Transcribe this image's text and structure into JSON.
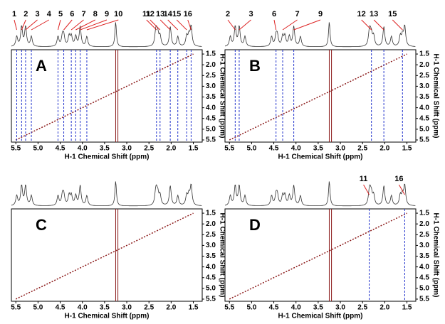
{
  "chart_data": [
    {
      "type": "nmr2d",
      "panel": "A",
      "xlabel": "H-1 Chemical Shift (ppm)",
      "ylabel": "H-1 Chemical Shift (ppm)",
      "xlim": [
        5.6,
        1.3
      ],
      "ylim": [
        1.3,
        5.6
      ],
      "xticks": [
        5.5,
        {
          "value": 5,
          "label": "5.0"
        },
        4.5,
        {
          "value": 4,
          "label": "4.0"
        },
        3.5,
        {
          "value": 3,
          "label": "3.0"
        },
        2.5,
        {
          "value": 2,
          "label": "2.0"
        },
        1.5
      ],
      "yticks": [
        1.5,
        {
          "value": 2,
          "label": "2.0"
        },
        2.5,
        {
          "value": 3,
          "label": "3.0"
        },
        3.5,
        {
          "value": 4,
          "label": "4.0"
        },
        4.5,
        {
          "value": 5,
          "label": "5.0"
        },
        5.5
      ],
      "annotations": [
        {
          "text": "1",
          "x": 5.48
        },
        {
          "text": "2",
          "x": 5.37
        },
        {
          "text": "3",
          "x": 5.28
        },
        {
          "text": "4",
          "x": 5.15
        },
        {
          "text": "5",
          "x": 4.55
        },
        {
          "text": "6",
          "x": 4.42
        },
        {
          "text": "7",
          "x": 4.25
        },
        {
          "text": "8",
          "x": 4.15
        },
        {
          "text": "9",
          "x": 4.05
        },
        {
          "text": "10",
          "x": 3.9
        },
        {
          "text": "11",
          "x": 2.33
        },
        {
          "text": "12",
          "x": 2.25
        },
        {
          "text": "13",
          "x": 2.02
        },
        {
          "text": "14",
          "x": 1.85
        },
        {
          "text": "15",
          "x": 1.65
        },
        {
          "text": "16",
          "x": 1.55
        }
      ]
    },
    {
      "type": "nmr2d",
      "panel": "B",
      "xlabel": "H-1 Chemical Shift (ppm)",
      "ylabel": "H-1 Chemical Shift (ppm)",
      "xlim": [
        5.6,
        1.3
      ],
      "ylim": [
        1.3,
        5.6
      ],
      "xticks": [
        5.5,
        {
          "value": 5,
          "label": "5.0"
        },
        4.5,
        {
          "value": 4,
          "label": "4.0"
        },
        3.5,
        {
          "value": 3,
          "label": "3.0"
        },
        2.5,
        {
          "value": 2,
          "label": "2.0"
        },
        1.5
      ],
      "yticks": [
        1.5,
        {
          "value": 2,
          "label": "2.0"
        },
        2.5,
        {
          "value": 3,
          "label": "3.0"
        },
        3.5,
        {
          "value": 4,
          "label": "4.0"
        },
        4.5,
        {
          "value": 5,
          "label": "5.0"
        },
        5.5
      ],
      "annotations": [
        {
          "text": "2",
          "x": 5.37
        },
        {
          "text": "3",
          "x": 5.28
        },
        {
          "text": "6",
          "x": 4.45
        },
        {
          "text": "7",
          "x": 4.3
        },
        {
          "text": "9",
          "x": 4.05
        },
        {
          "text": "12",
          "x": 2.3
        },
        {
          "text": "13",
          "x": 2.02
        },
        {
          "text": "15",
          "x": 1.6
        }
      ]
    },
    {
      "type": "nmr2d",
      "panel": "C",
      "xlabel": "H-1 Chemical Shift (ppm)",
      "ylabel": "H-1 Chemical Shift (ppm)",
      "xlim": [
        5.6,
        1.3
      ],
      "ylim": [
        1.3,
        5.6
      ],
      "xticks": [
        5.5,
        {
          "value": 5,
          "label": "5.0"
        },
        4.5,
        {
          "value": 4,
          "label": "4.0"
        },
        3.5,
        {
          "value": 3,
          "label": "3.0"
        },
        2.5,
        {
          "value": 2,
          "label": "2.0"
        },
        1.5
      ],
      "yticks": [
        1.5,
        {
          "value": 2,
          "label": "2.0"
        },
        2.5,
        {
          "value": 3,
          "label": "3.0"
        },
        3.5,
        {
          "value": 4,
          "label": "4.0"
        },
        4.5,
        {
          "value": 5,
          "label": "5.0"
        },
        5.5
      ],
      "annotations": []
    },
    {
      "type": "nmr2d",
      "panel": "D",
      "xlabel": "H-1 Chemical Shift (ppm)",
      "ylabel": "H-1 Chemical Shift (ppm)",
      "xlim": [
        5.6,
        1.3
      ],
      "ylim": [
        1.3,
        5.6
      ],
      "xticks": [
        5.5,
        {
          "value": 5,
          "label": "5.0"
        },
        4.5,
        {
          "value": 4,
          "label": "4.0"
        },
        3.5,
        {
          "value": 3,
          "label": "3.0"
        },
        2.5,
        {
          "value": 2,
          "label": "2.0"
        },
        1.5
      ],
      "yticks": [
        1.5,
        {
          "value": 2,
          "label": "2.0"
        },
        2.5,
        {
          "value": 3,
          "label": "3.0"
        },
        3.5,
        {
          "value": 4,
          "label": "4.0"
        },
        4.5,
        {
          "value": 5,
          "label": "5.0"
        },
        5.5
      ],
      "annotations": [
        {
          "text": "11",
          "x": 2.35
        },
        {
          "text": "16",
          "x": 1.55
        }
      ]
    }
  ]
}
